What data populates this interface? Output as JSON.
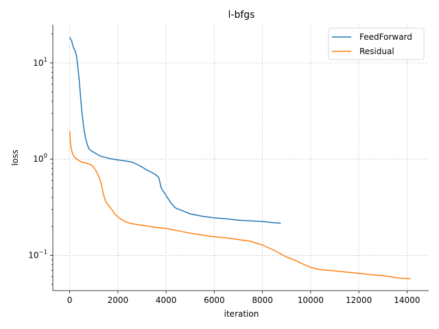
{
  "chart_data": {
    "type": "line",
    "title": "l-bfgs",
    "xlabel": "iteration",
    "ylabel": "loss",
    "xlim": [
      -700,
      14900
    ],
    "ylim": [
      0.043,
      25
    ],
    "yscale": "log",
    "xticks": [
      0,
      2000,
      4000,
      6000,
      8000,
      10000,
      12000,
      14000
    ],
    "xtick_labels": [
      "0",
      "2000",
      "4000",
      "6000",
      "8000",
      "10000",
      "12000",
      "14000"
    ],
    "yticks": [
      0.1,
      1,
      10
    ],
    "grid": true,
    "legend_position": "top-right",
    "series": [
      {
        "name": "FeedForward",
        "color": "#1f77b4",
        "x": [
          0,
          80,
          150,
          220,
          280,
          320,
          350,
          400,
          450,
          500,
          550,
          600,
          650,
          700,
          750,
          800,
          900,
          1000,
          1100,
          1200,
          1300,
          1500,
          1700,
          2000,
          2300,
          2600,
          2800,
          3000,
          3200,
          3400,
          3600,
          3700,
          3800,
          4000,
          4200,
          4400,
          4700,
          5000,
          5500,
          6000,
          6500,
          7000,
          7500,
          8000,
          8200,
          8400,
          8760
        ],
        "y": [
          18.5,
          17.0,
          14.5,
          13.5,
          12.0,
          10.0,
          8.5,
          6.5,
          4.5,
          3.2,
          2.5,
          2.0,
          1.7,
          1.5,
          1.38,
          1.28,
          1.22,
          1.18,
          1.14,
          1.1,
          1.07,
          1.04,
          1.01,
          0.98,
          0.96,
          0.93,
          0.88,
          0.83,
          0.77,
          0.73,
          0.68,
          0.64,
          0.5,
          0.42,
          0.35,
          0.31,
          0.29,
          0.27,
          0.255,
          0.245,
          0.24,
          0.232,
          0.228,
          0.225,
          0.222,
          0.219,
          0.216
        ]
      },
      {
        "name": "Residual",
        "color": "#ff7f0e",
        "x": [
          0,
          30,
          60,
          100,
          150,
          200,
          300,
          400,
          500,
          700,
          900,
          1000,
          1100,
          1200,
          1300,
          1400,
          1500,
          1700,
          1900,
          2100,
          2300,
          2500,
          3000,
          3500,
          4000,
          4500,
          5000,
          5500,
          6000,
          6500,
          7000,
          7500,
          8000,
          8500,
          9000,
          9300,
          9600,
          10000,
          10400,
          11000,
          11500,
          12000,
          12500,
          12900,
          13300,
          13700,
          14150
        ],
        "y": [
          1.95,
          1.5,
          1.3,
          1.18,
          1.1,
          1.05,
          1.0,
          0.96,
          0.93,
          0.91,
          0.87,
          0.82,
          0.75,
          0.67,
          0.57,
          0.43,
          0.36,
          0.31,
          0.265,
          0.24,
          0.225,
          0.215,
          0.205,
          0.197,
          0.19,
          0.18,
          0.17,
          0.163,
          0.156,
          0.152,
          0.146,
          0.14,
          0.128,
          0.112,
          0.096,
          0.09,
          0.083,
          0.075,
          0.071,
          0.069,
          0.067,
          0.065,
          0.063,
          0.062,
          0.06,
          0.058,
          0.057
        ]
      }
    ]
  }
}
